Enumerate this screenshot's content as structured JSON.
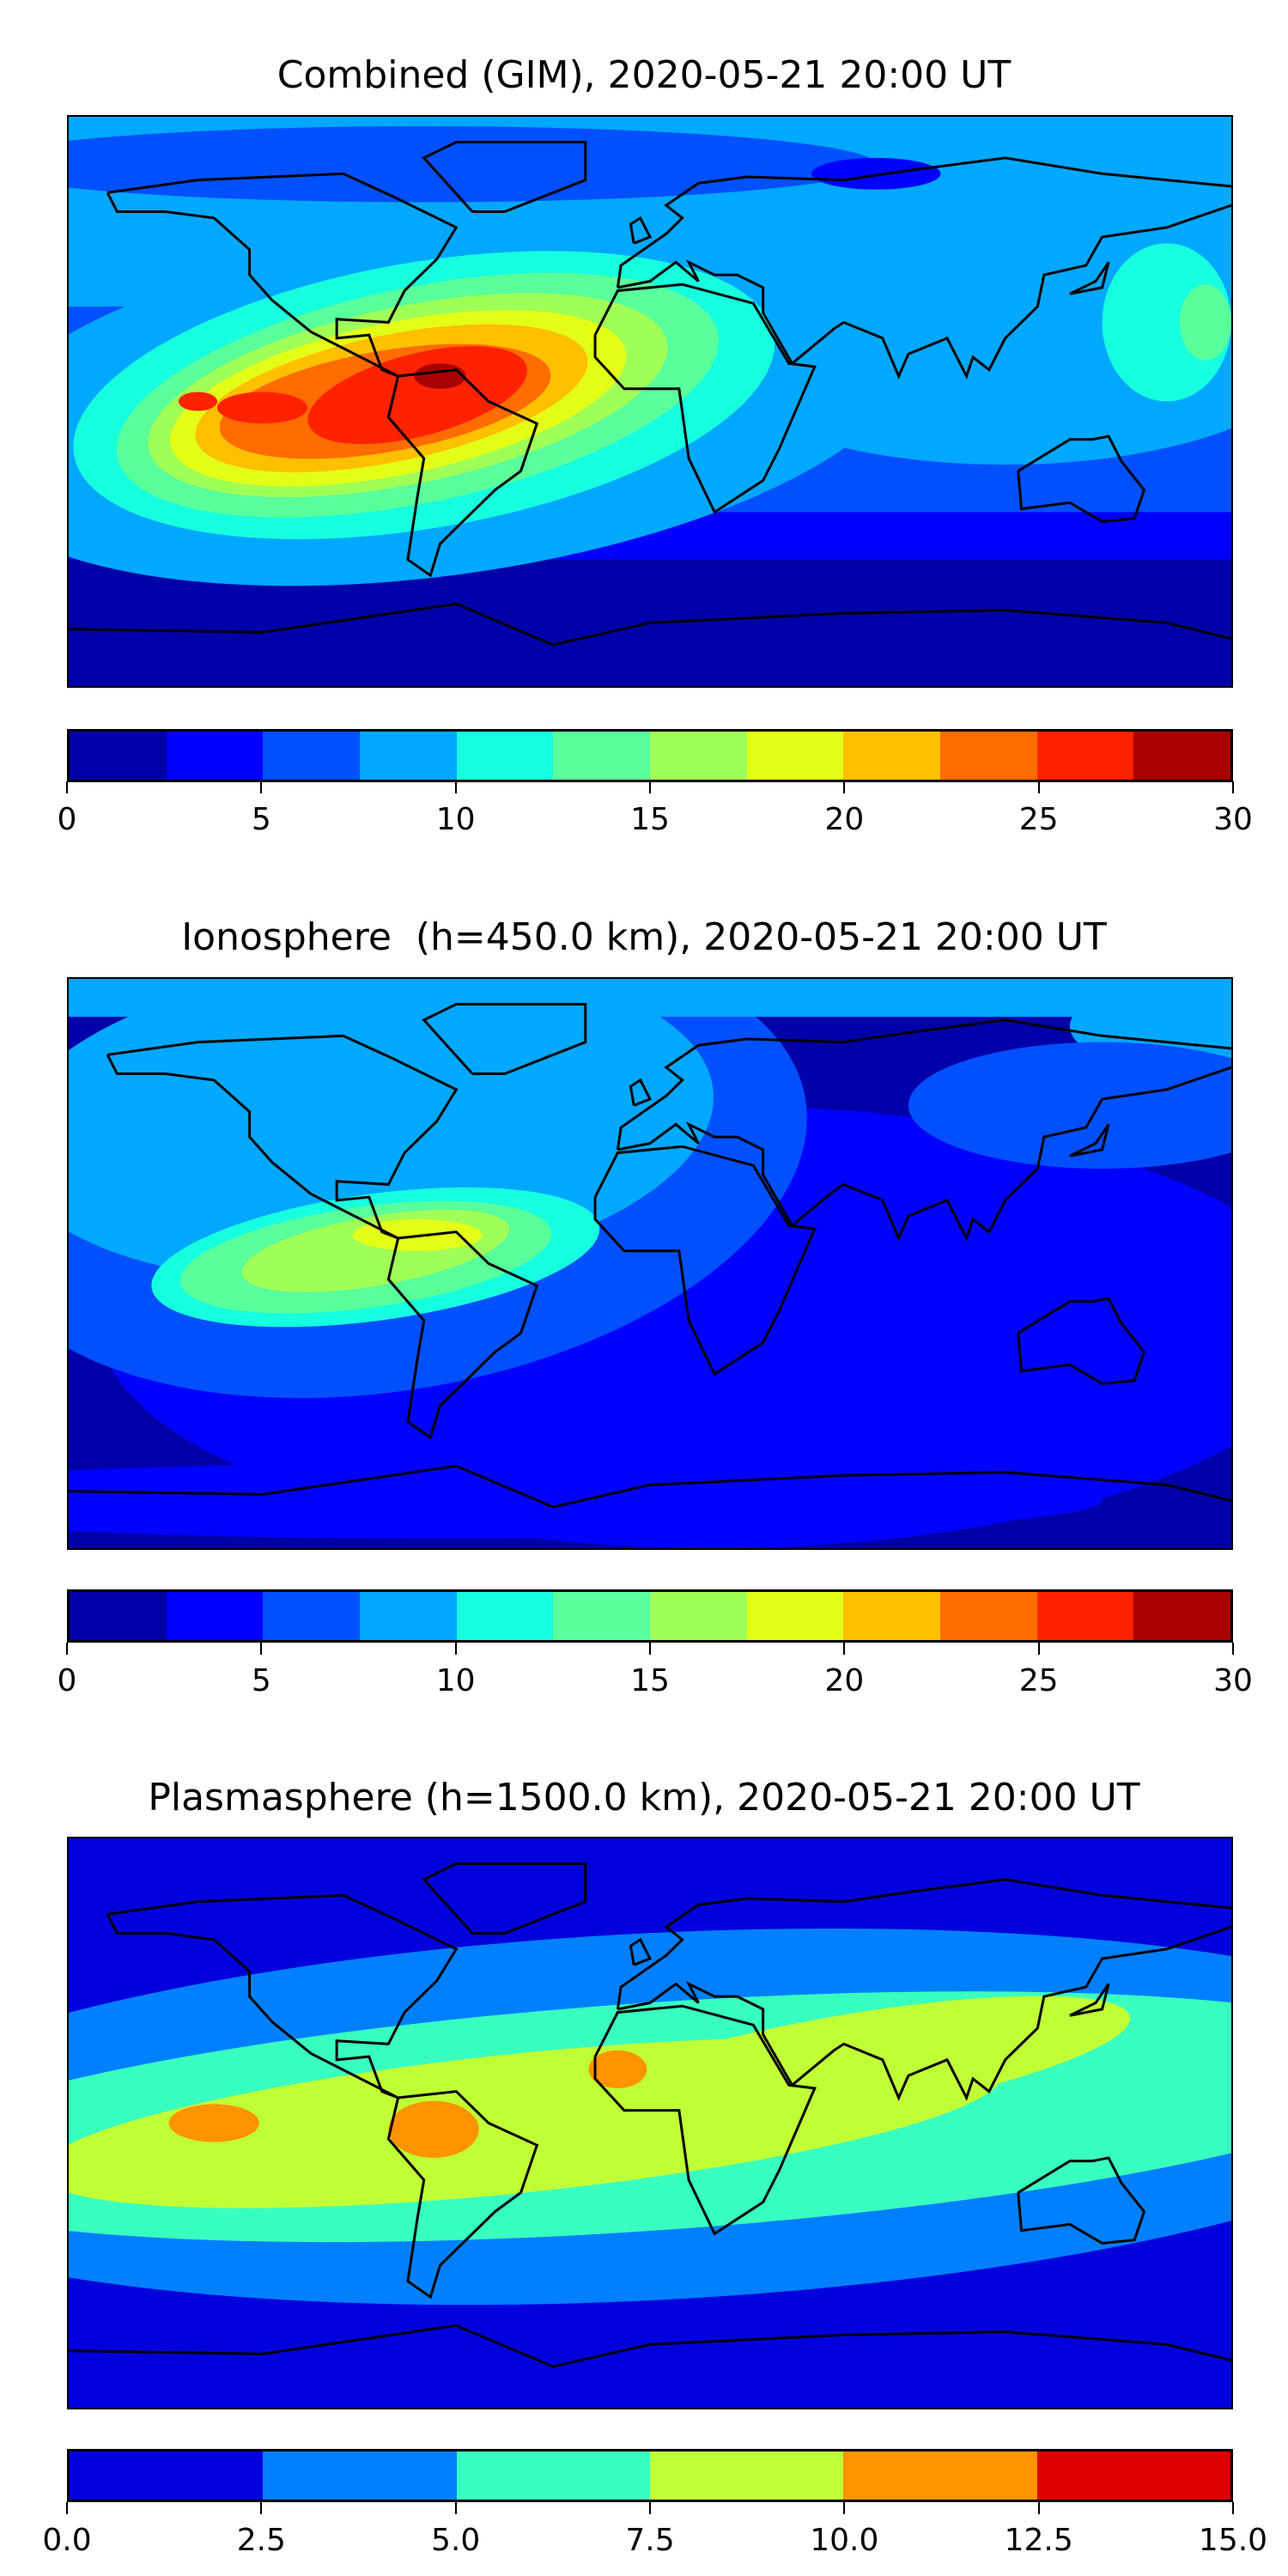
{
  "chart_data": [
    {
      "type": "heatmap",
      "title": "Combined (GIM), 2020-05-21 20:00 UT",
      "colorbar": {
        "range": [
          0,
          30
        ],
        "levels": [
          0,
          2.5,
          5,
          7.5,
          10,
          12.5,
          15,
          17.5,
          20,
          22.5,
          25,
          27.5,
          30
        ],
        "ticks": [
          "0",
          "5",
          "10",
          "15",
          "20",
          "25",
          "30"
        ],
        "colors": [
          "#0000a8",
          "#0000ff",
          "#0050ff",
          "#00a8ff",
          "#16ffdf",
          "#58ff9b",
          "#a0ff56",
          "#e4ff16",
          "#ffc000",
          "#ff6c00",
          "#ff2200",
          "#a80000"
        ]
      },
      "peak_region": "northern South America / Caribbean, max level 27.5-30"
    },
    {
      "type": "heatmap",
      "title": "Ionosphere  (h=450.0 km), 2020-05-21 20:00 UT",
      "colorbar": {
        "range": [
          0,
          30
        ],
        "levels": [
          0,
          2.5,
          5,
          7.5,
          10,
          12.5,
          15,
          17.5,
          20,
          22.5,
          25,
          27.5,
          30
        ],
        "ticks": [
          "0",
          "5",
          "10",
          "15",
          "20",
          "25",
          "30"
        ],
        "colors": [
          "#0000a8",
          "#0000ff",
          "#0050ff",
          "#00a8ff",
          "#16ffdf",
          "#58ff9b",
          "#a0ff56",
          "#e4ff16",
          "#ffc000",
          "#ff6c00",
          "#ff2200",
          "#a80000"
        ]
      },
      "peak_region": "Caribbean, max level 17.5-20"
    },
    {
      "type": "heatmap",
      "title": "Plasmasphere (h=1500.0 km), 2020-05-21 20:00 UT",
      "colorbar": {
        "range": [
          0,
          15
        ],
        "levels": [
          0,
          2.5,
          5,
          7.5,
          10,
          12.5,
          15
        ],
        "ticks": [
          "0.0",
          "2.5",
          "5.0",
          "7.5",
          "10.0",
          "12.5",
          "15.0"
        ],
        "colors": [
          "#0000dd",
          "#0080ff",
          "#38ffc0",
          "#c0ff36",
          "#ff9400",
          "#dd0000"
        ]
      },
      "peak_region": "equatorial band, max level 10-12.5"
    }
  ]
}
